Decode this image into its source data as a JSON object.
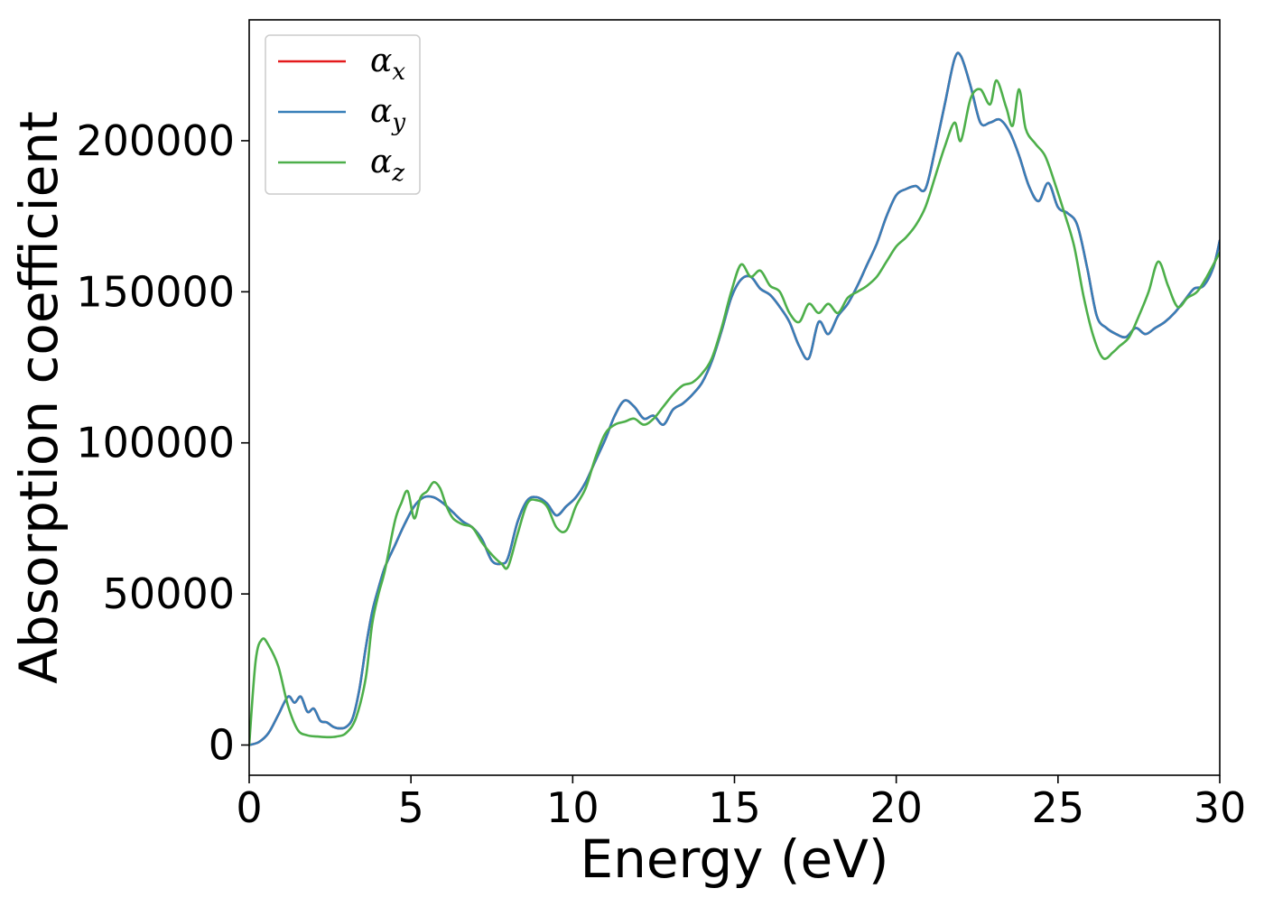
{
  "chart_data": {
    "type": "line",
    "title": "",
    "xlabel": "Energy (eV)",
    "ylabel": "Absorption coefficient",
    "xlim": [
      0,
      30
    ],
    "ylim": [
      -10000,
      240000
    ],
    "xticks": [
      0,
      5,
      10,
      15,
      20,
      25,
      30
    ],
    "xtick_labels": [
      "0",
      "5",
      "10",
      "15",
      "20",
      "25",
      "30"
    ],
    "yticks": [
      0,
      50000,
      100000,
      150000,
      200000
    ],
    "ytick_labels": [
      "0",
      "50000",
      "100000",
      "150000",
      "200000"
    ],
    "grid": false,
    "legend_position": "top-left",
    "series": [
      {
        "name": "α_x",
        "label_base": "α",
        "label_sub": "x",
        "color": "#e41a1c",
        "x": [
          0,
          0.3,
          0.6,
          0.9,
          1.2,
          1.4,
          1.6,
          1.8,
          2.0,
          2.2,
          2.4,
          2.6,
          2.8,
          3.0,
          3.2,
          3.4,
          3.6,
          3.8,
          4.0,
          4.2,
          4.5,
          4.8,
          5.1,
          5.4,
          5.7,
          6.0,
          6.3,
          6.6,
          6.9,
          7.2,
          7.5,
          7.8,
          8.0,
          8.3,
          8.6,
          8.9,
          9.2,
          9.5,
          9.8,
          10.1,
          10.4,
          10.7,
          11.0,
          11.3,
          11.6,
          11.9,
          12.2,
          12.5,
          12.8,
          13.1,
          13.4,
          13.7,
          14.0,
          14.3,
          14.6,
          14.9,
          15.2,
          15.5,
          15.8,
          16.1,
          16.4,
          16.7,
          17.0,
          17.3,
          17.6,
          17.9,
          18.2,
          18.5,
          18.8,
          19.1,
          19.4,
          19.7,
          20.0,
          20.3,
          20.6,
          20.9,
          21.2,
          21.5,
          21.8,
          22.0,
          22.3,
          22.6,
          22.9,
          23.2,
          23.5,
          23.8,
          24.1,
          24.4,
          24.7,
          25.0,
          25.3,
          25.6,
          25.9,
          26.2,
          26.5,
          26.8,
          27.1,
          27.4,
          27.7,
          28.0,
          28.3,
          28.6,
          28.9,
          29.2,
          29.5,
          29.8,
          30.0
        ],
        "y": [
          0,
          1000,
          4000,
          10000,
          16000,
          14000,
          16000,
          11000,
          12000,
          8000,
          7500,
          6000,
          5500,
          6000,
          9000,
          18000,
          32000,
          44000,
          52000,
          59000,
          66000,
          73000,
          79000,
          82000,
          82000,
          80000,
          77000,
          74000,
          72000,
          68000,
          61000,
          60000,
          62000,
          74000,
          81000,
          82000,
          80000,
          76000,
          79000,
          82000,
          87000,
          94000,
          101000,
          109000,
          114000,
          112000,
          108000,
          109000,
          106000,
          111000,
          113000,
          116000,
          120000,
          127000,
          137000,
          148000,
          154000,
          155000,
          151000,
          149000,
          145000,
          140000,
          132000,
          128000,
          140000,
          136000,
          142000,
          146000,
          152000,
          159000,
          166000,
          175000,
          182000,
          184000,
          185000,
          184000,
          197000,
          212000,
          227000,
          228000,
          218000,
          206000,
          206000,
          207000,
          203000,
          195000,
          185000,
          180000,
          186000,
          178000,
          176000,
          172000,
          158000,
          142000,
          138000,
          136000,
          135000,
          138000,
          136000,
          138000,
          140000,
          143000,
          147000,
          151000,
          152000,
          158000,
          167000
        ]
      },
      {
        "name": "α_y",
        "label_base": "α",
        "label_sub": "y",
        "color": "#377eb8",
        "x": [
          0,
          0.3,
          0.6,
          0.9,
          1.2,
          1.4,
          1.6,
          1.8,
          2.0,
          2.2,
          2.4,
          2.6,
          2.8,
          3.0,
          3.2,
          3.4,
          3.6,
          3.8,
          4.0,
          4.2,
          4.5,
          4.8,
          5.1,
          5.4,
          5.7,
          6.0,
          6.3,
          6.6,
          6.9,
          7.2,
          7.5,
          7.8,
          8.0,
          8.3,
          8.6,
          8.9,
          9.2,
          9.5,
          9.8,
          10.1,
          10.4,
          10.7,
          11.0,
          11.3,
          11.6,
          11.9,
          12.2,
          12.5,
          12.8,
          13.1,
          13.4,
          13.7,
          14.0,
          14.3,
          14.6,
          14.9,
          15.2,
          15.5,
          15.8,
          16.1,
          16.4,
          16.7,
          17.0,
          17.3,
          17.6,
          17.9,
          18.2,
          18.5,
          18.8,
          19.1,
          19.4,
          19.7,
          20.0,
          20.3,
          20.6,
          20.9,
          21.2,
          21.5,
          21.8,
          22.0,
          22.3,
          22.6,
          22.9,
          23.2,
          23.5,
          23.8,
          24.1,
          24.4,
          24.7,
          25.0,
          25.3,
          25.6,
          25.9,
          26.2,
          26.5,
          26.8,
          27.1,
          27.4,
          27.7,
          28.0,
          28.3,
          28.6,
          28.9,
          29.2,
          29.5,
          29.8,
          30.0
        ],
        "y": [
          0,
          1000,
          4000,
          10000,
          16000,
          14000,
          16000,
          11000,
          12000,
          8000,
          7500,
          6000,
          5500,
          6000,
          9000,
          18000,
          32000,
          44000,
          52000,
          59000,
          66000,
          73000,
          79000,
          82000,
          82000,
          80000,
          77000,
          74000,
          72000,
          68000,
          61000,
          60000,
          62000,
          74000,
          81000,
          82000,
          80000,
          76000,
          79000,
          82000,
          87000,
          94000,
          101000,
          109000,
          114000,
          112000,
          108000,
          109000,
          106000,
          111000,
          113000,
          116000,
          120000,
          127000,
          137000,
          148000,
          154000,
          155000,
          151000,
          149000,
          145000,
          140000,
          132000,
          128000,
          140000,
          136000,
          142000,
          146000,
          152000,
          159000,
          166000,
          175000,
          182000,
          184000,
          185000,
          184000,
          197000,
          212000,
          227000,
          228000,
          218000,
          206000,
          206000,
          207000,
          203000,
          195000,
          185000,
          180000,
          186000,
          178000,
          176000,
          172000,
          158000,
          142000,
          138000,
          136000,
          135000,
          138000,
          136000,
          138000,
          140000,
          143000,
          147000,
          151000,
          152000,
          158000,
          167000
        ]
      },
      {
        "name": "α_z",
        "label_base": "α",
        "label_sub": "z",
        "color": "#4daf4a",
        "x": [
          0,
          0.2,
          0.4,
          0.6,
          0.9,
          1.2,
          1.5,
          1.8,
          2.1,
          2.4,
          2.7,
          3.0,
          3.3,
          3.6,
          3.8,
          4.0,
          4.2,
          4.5,
          4.7,
          4.9,
          5.1,
          5.3,
          5.5,
          5.7,
          5.9,
          6.1,
          6.3,
          6.6,
          6.9,
          7.2,
          7.5,
          7.8,
          8.0,
          8.3,
          8.6,
          8.9,
          9.2,
          9.5,
          9.8,
          10.1,
          10.4,
          10.7,
          11.0,
          11.3,
          11.6,
          11.9,
          12.2,
          12.5,
          12.8,
          13.1,
          13.4,
          13.7,
          14.0,
          14.3,
          14.6,
          14.9,
          15.2,
          15.5,
          15.8,
          16.1,
          16.4,
          16.7,
          17.0,
          17.3,
          17.6,
          17.9,
          18.2,
          18.5,
          18.8,
          19.1,
          19.4,
          19.7,
          20.0,
          20.3,
          20.6,
          20.9,
          21.2,
          21.5,
          21.8,
          22.0,
          22.3,
          22.6,
          22.9,
          23.1,
          23.4,
          23.6,
          23.8,
          24.0,
          24.3,
          24.6,
          24.9,
          25.2,
          25.5,
          25.8,
          26.1,
          26.4,
          26.7,
          26.9,
          27.2,
          27.5,
          27.8,
          28.1,
          28.4,
          28.7,
          29.0,
          29.3,
          29.6,
          30.0
        ],
        "y": [
          0,
          28000,
          35000,
          33000,
          26000,
          13000,
          5000,
          3200,
          2800,
          2600,
          2800,
          4000,
          9000,
          22000,
          40000,
          50000,
          58000,
          74000,
          80000,
          84000,
          75000,
          82000,
          84000,
          87000,
          85000,
          79000,
          75000,
          73000,
          72000,
          67000,
          63000,
          60000,
          59000,
          70000,
          80000,
          81000,
          79000,
          72000,
          71000,
          79000,
          85000,
          95000,
          103000,
          106000,
          107000,
          108000,
          106000,
          108000,
          112000,
          116000,
          119000,
          120000,
          123000,
          128000,
          138000,
          150000,
          159000,
          155000,
          157000,
          152000,
          150000,
          143000,
          140000,
          146000,
          143000,
          146000,
          143000,
          148000,
          150000,
          152000,
          155000,
          160000,
          165000,
          168000,
          172000,
          178000,
          188000,
          198000,
          206000,
          200000,
          214000,
          217000,
          212000,
          220000,
          211000,
          205000,
          217000,
          204000,
          199000,
          195000,
          186000,
          176000,
          165000,
          148000,
          135000,
          128000,
          130000,
          132000,
          135000,
          142000,
          150000,
          160000,
          152000,
          145000,
          148000,
          150000,
          155000,
          163000
        ]
      }
    ]
  }
}
